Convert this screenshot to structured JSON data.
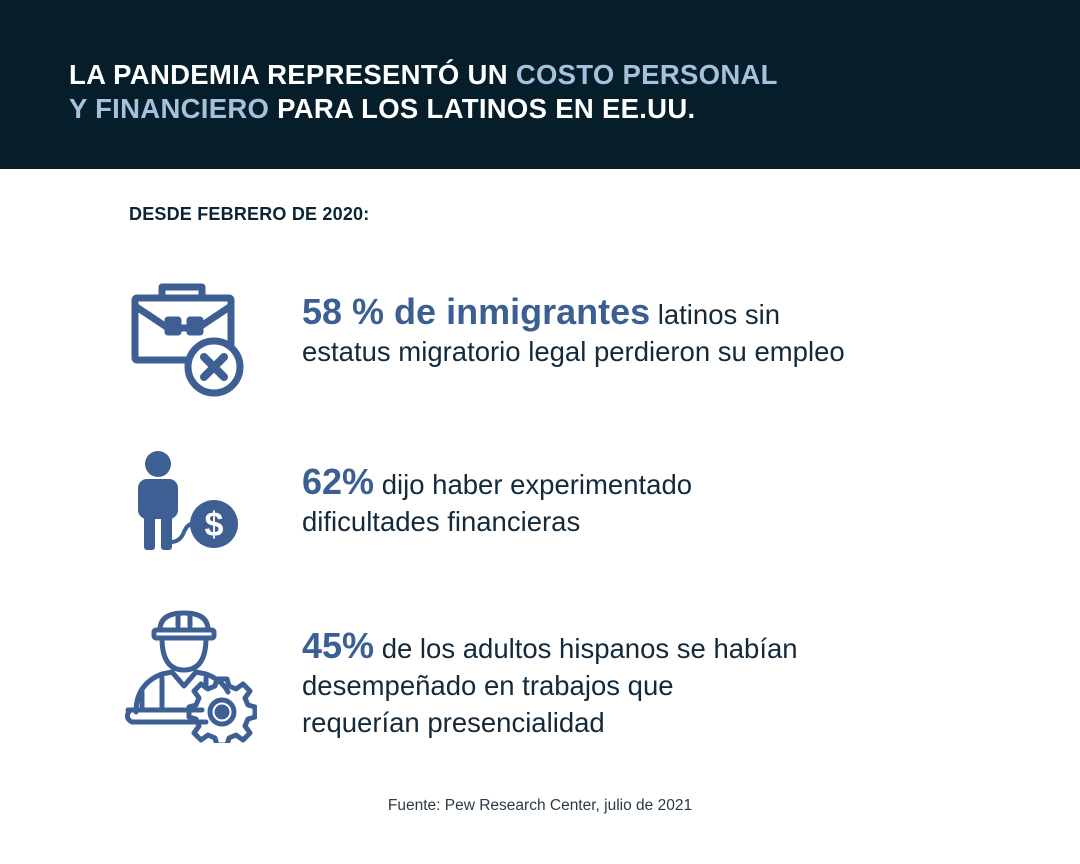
{
  "header": {
    "title_part1": "LA PANDEMIA REPRESENTÓ UN ",
    "title_highlight1": "COSTO PERSONAL",
    "title_highlight2": "Y FINANCIERO",
    "title_part2": " PARA LOS LATINOS EN EE.UU."
  },
  "subtitle": "DESDE FEBRERO DE 2020:",
  "colors": {
    "header_bg": "#061e29",
    "highlight": "#a7c1dd",
    "accent": "#3c5f93"
  },
  "stats": [
    {
      "icon": "briefcase-x-icon",
      "highlight": "58 % de inmigrantes",
      "text_line1": " latinos sin",
      "text_line2": "estatus migratorio legal perdieron su empleo"
    },
    {
      "icon": "person-ball-chain-icon",
      "highlight": "62%",
      "text_line1": " dijo haber experimentado",
      "text_line2": "dificultades financieras"
    },
    {
      "icon": "worker-gear-icon",
      "highlight": "45%",
      "text_line1": " de los adultos hispanos se habían",
      "text_line2": "desempeñado en trabajos que",
      "text_line3": "requerían presencialidad"
    }
  ],
  "source": "Fuente: Pew Research Center, julio de 2021"
}
